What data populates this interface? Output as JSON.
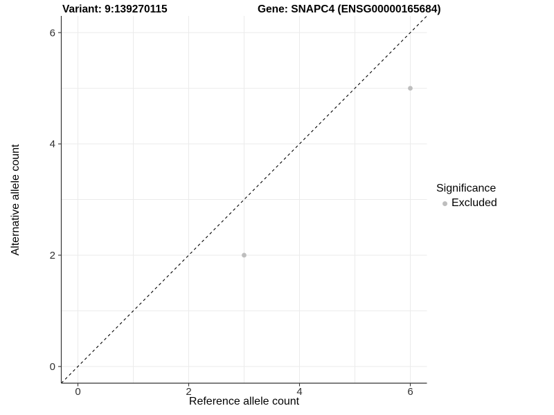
{
  "chart_data": {
    "type": "scatter",
    "title_left": "Variant: 9:139270115",
    "title_right": "Gene: SNAPC4 (ENSG00000165684)",
    "xlabel": "Reference allele count",
    "ylabel": "Alternative allele count",
    "xlim": [
      -0.3,
      6.3
    ],
    "ylim": [
      -0.3,
      6.3
    ],
    "xticks": [
      0,
      2,
      4,
      6
    ],
    "yticks": [
      0,
      2,
      4,
      6
    ],
    "grid": {
      "show": true,
      "every": 1,
      "color": "#ebebeb"
    },
    "reference_line": {
      "type": "identity y=x",
      "style": "dashed",
      "color": "#000000"
    },
    "series": [
      {
        "name": "Excluded",
        "color": "#bebebe",
        "points": [
          [
            3,
            2
          ],
          [
            6,
            5
          ]
        ]
      }
    ],
    "legend": {
      "title": "Significance",
      "position": "right",
      "items": [
        {
          "label": "Excluded",
          "color": "#bebebe",
          "marker": "circle"
        }
      ]
    },
    "style": {
      "axis_line_color": "#333333",
      "tick_label_color": "#303030",
      "background": "#ffffff"
    }
  }
}
